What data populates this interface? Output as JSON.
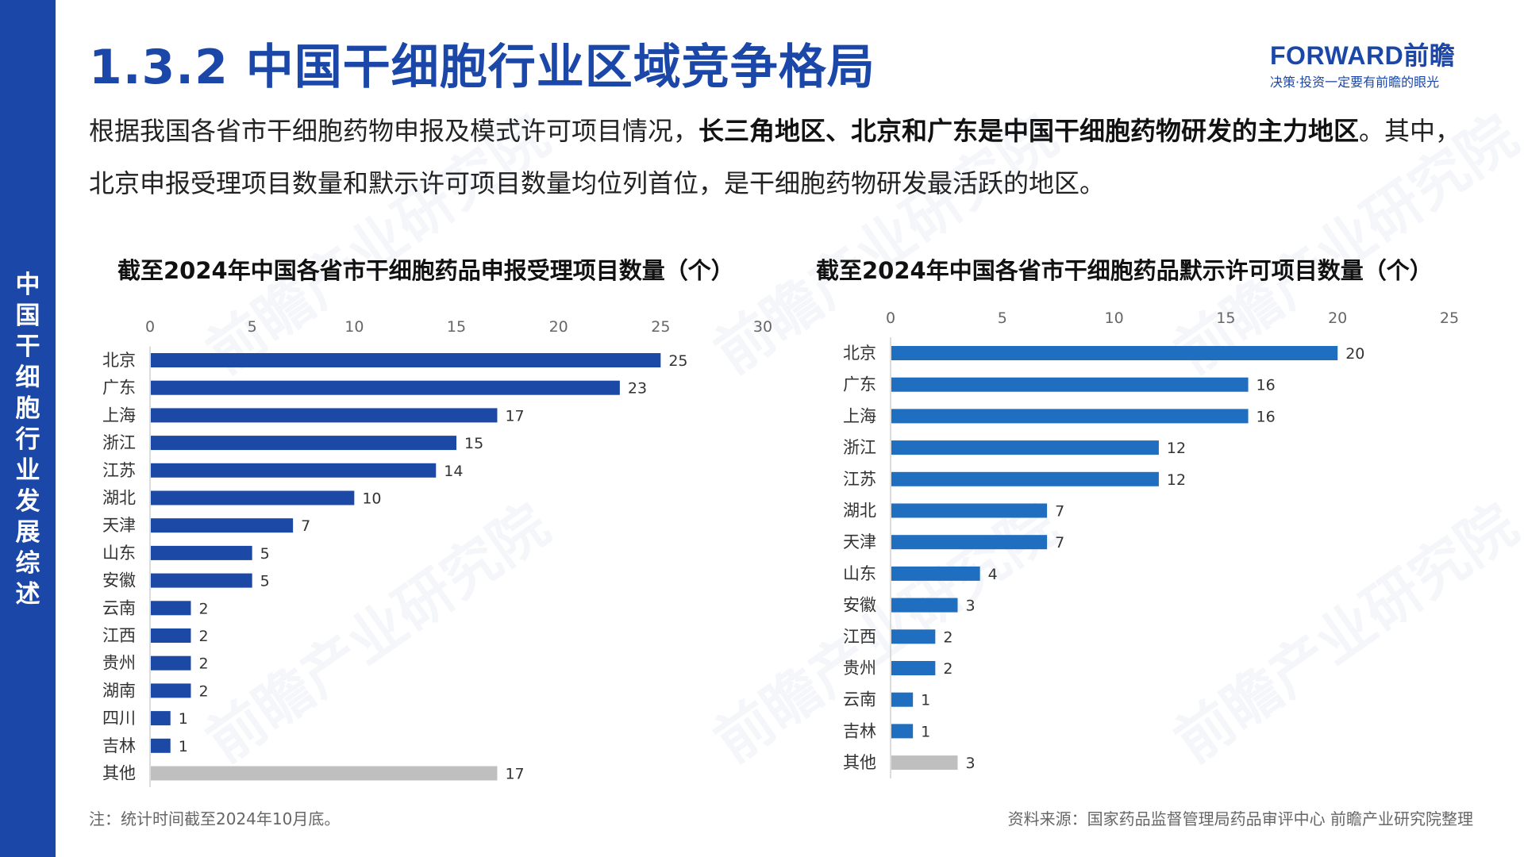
{
  "sidebar": {
    "chars": [
      "中",
      "国",
      "干",
      "细",
      "胞",
      "行",
      "业",
      "发",
      "展",
      "综",
      "述"
    ]
  },
  "header": {
    "title": "1.3.2 中国干细胞行业区域竞争格局",
    "logo_main": "FORWARD前瞻",
    "logo_tagline": "决策·投资一定要有前瞻的眼光"
  },
  "intro": {
    "part1": "根据我国各省市干细胞药物申报及模式许可项目情况，",
    "bold": "长三角地区、北京和广东是中国干细胞药物研发的主力地区",
    "part2": "。其中，北京申报受理项目数量和默示许可项目数量均位列首位，是干细胞药物研发最活跃的地区。"
  },
  "watermark": "前瞻产业研究院",
  "chart_data": [
    {
      "type": "bar",
      "orientation": "horizontal",
      "title": "截至2024年中国各省市干细胞药品申报受理项目数量（个）",
      "categories": [
        "北京",
        "广东",
        "上海",
        "浙江",
        "江苏",
        "湖北",
        "天津",
        "山东",
        "安徽",
        "云南",
        "江西",
        "贵州",
        "湖南",
        "四川",
        "吉林",
        "其他"
      ],
      "values": [
        25,
        23,
        17,
        15,
        14,
        10,
        7,
        5,
        5,
        2,
        2,
        2,
        2,
        1,
        1,
        17
      ],
      "xlim": [
        0,
        30
      ],
      "ticks": [
        0,
        5,
        10,
        15,
        20,
        25,
        30
      ],
      "axis_position": "top",
      "colors": {
        "bar": "#1c48a6",
        "other": "#bfbfbf"
      }
    },
    {
      "type": "bar",
      "orientation": "horizontal",
      "title": "截至2024年中国各省市干细胞药品默示许可项目数量（个）",
      "categories": [
        "北京",
        "广东",
        "上海",
        "浙江",
        "江苏",
        "湖北",
        "天津",
        "山东",
        "安徽",
        "江西",
        "贵州",
        "云南",
        "吉林",
        "其他"
      ],
      "values": [
        20,
        16,
        16,
        12,
        12,
        7,
        7,
        4,
        3,
        2,
        2,
        1,
        1,
        3
      ],
      "xlim": [
        0,
        25
      ],
      "ticks": [
        0,
        5,
        10,
        15,
        20,
        25
      ],
      "axis_position": "top",
      "colors": {
        "bar": "#1f6ec0",
        "other": "#bfbfbf"
      }
    }
  ],
  "footer": {
    "note": "注：统计时间截至2024年10月底。",
    "source": "资料来源：国家药品监督管理局药品审评中心 前瞻产业研究院整理"
  }
}
